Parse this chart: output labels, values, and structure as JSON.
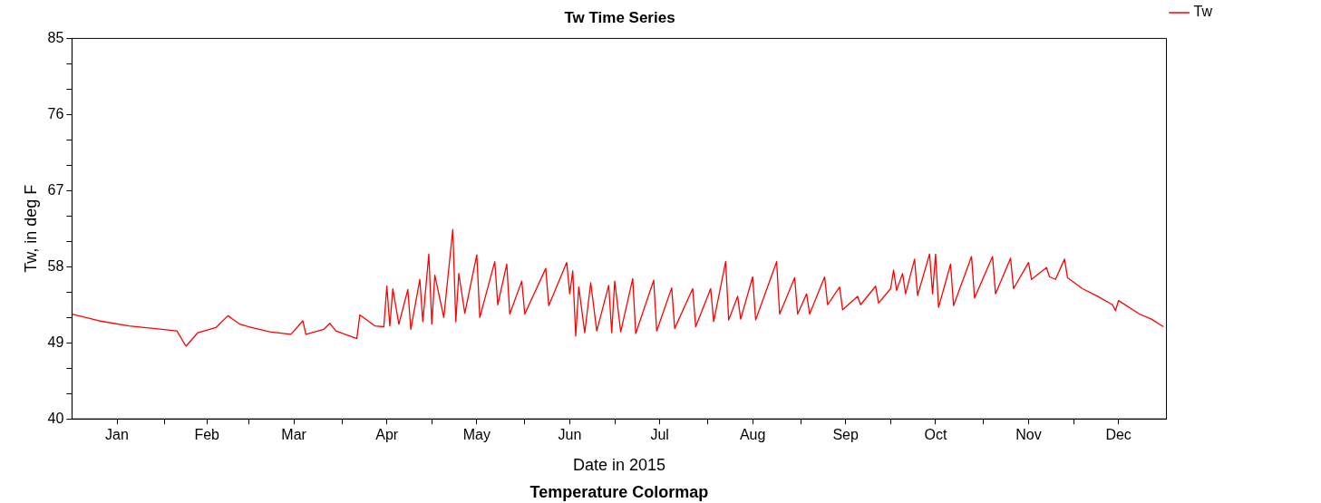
{
  "chart_data": {
    "type": "line",
    "title": "Tw Time Series",
    "xlabel": "Date in 2015",
    "ylabel": "Tw, in deg F",
    "annotations": [
      "Temperature Colormap"
    ],
    "x": [
      "2015-01-01",
      "2015-01-10",
      "2015-01-20",
      "2015-01-31",
      "2015-02-05",
      "2015-02-08",
      "2015-02-12",
      "2015-02-18",
      "2015-02-22",
      "2015-02-26",
      "2015-03-01",
      "2015-03-08",
      "2015-03-15",
      "2015-03-19",
      "2015-03-20",
      "2015-03-26",
      "2015-03-28",
      "2015-03-30",
      "2015-04-06",
      "2015-04-07",
      "2015-04-12",
      "2015-04-15",
      "2015-04-16",
      "2015-04-17",
      "2015-04-18",
      "2015-04-20",
      "2015-04-23",
      "2015-04-24",
      "2015-04-27",
      "2015-04-28",
      "2015-04-30",
      "2015-05-01",
      "2015-05-02",
      "2015-05-05",
      "2015-05-08",
      "2015-05-09",
      "2015-05-10",
      "2015-05-12",
      "2015-05-16",
      "2015-05-17",
      "2015-05-22",
      "2015-05-23",
      "2015-05-26",
      "2015-05-27",
      "2015-05-31",
      "2015-06-01",
      "2015-06-08",
      "2015-06-09",
      "2015-06-15",
      "2015-06-16",
      "2015-06-17",
      "2015-06-18",
      "2015-06-19",
      "2015-06-21",
      "2015-06-23",
      "2015-06-25",
      "2015-06-29",
      "2015-06-30",
      "2015-07-01",
      "2015-07-03",
      "2015-07-07",
      "2015-07-08",
      "2015-07-14",
      "2015-07-15",
      "2015-07-20",
      "2015-07-21",
      "2015-07-27",
      "2015-07-28",
      "2015-08-02",
      "2015-08-03",
      "2015-08-07",
      "2015-08-08",
      "2015-08-11",
      "2015-08-12",
      "2015-08-16",
      "2015-08-17",
      "2015-08-24",
      "2015-08-25",
      "2015-08-30",
      "2015-08-31",
      "2015-09-03",
      "2015-09-04",
      "2015-09-09",
      "2015-09-10",
      "2015-09-14",
      "2015-09-15",
      "2015-09-20",
      "2015-09-21",
      "2015-09-26",
      "2015-09-27",
      "2015-10-01",
      "2015-10-02",
      "2015-10-03",
      "2015-10-05",
      "2015-10-06",
      "2015-10-09",
      "2015-10-10",
      "2015-10-14",
      "2015-10-15",
      "2015-10-16",
      "2015-10-17",
      "2015-10-21",
      "2015-10-22",
      "2015-10-28",
      "2015-10-29",
      "2015-11-04",
      "2015-11-05",
      "2015-11-10",
      "2015-11-11",
      "2015-11-16",
      "2015-11-17",
      "2015-11-22",
      "2015-11-23",
      "2015-11-25",
      "2015-11-28",
      "2015-11-29",
      "2015-12-04",
      "2015-12-09",
      "2015-12-14",
      "2015-12-15",
      "2015-12-16",
      "2015-12-23",
      "2015-12-27",
      "2015-12-31"
    ],
    "series": [
      {
        "name": "Tw",
        "color": "#ff0000",
        "values": [
          52.4,
          51.6,
          51.0,
          50.6,
          50.4,
          48.6,
          50.2,
          50.8,
          52.2,
          51.2,
          50.9,
          50.3,
          50.0,
          51.6,
          50.0,
          50.6,
          51.3,
          50.4,
          49.5,
          52.3,
          51.0,
          50.9,
          55.7,
          51.0,
          55.4,
          51.2,
          55.3,
          50.6,
          56.5,
          51.5,
          59.5,
          51.2,
          57.0,
          52.0,
          62.4,
          51.5,
          57.2,
          52.5,
          59.4,
          52.0,
          58.6,
          53.5,
          58.3,
          52.4,
          56.3,
          52.4,
          57.8,
          53.4,
          58.5,
          54.8,
          57.5,
          49.8,
          55.6,
          50.2,
          56.1,
          50.4,
          55.8,
          50.2,
          56.3,
          50.3,
          56.6,
          50.1,
          56.4,
          50.4,
          55.5,
          50.7,
          55.4,
          50.9,
          55.4,
          51.5,
          58.6,
          51.7,
          54.5,
          51.8,
          56.8,
          51.7,
          58.6,
          52.4,
          56.7,
          52.4,
          54.8,
          52.4,
          56.8,
          53.5,
          55.6,
          52.9,
          54.5,
          53.5,
          55.7,
          53.7,
          55.4,
          57.6,
          55.2,
          57.2,
          54.8,
          58.9,
          54.6,
          59.5,
          54.8,
          59.5,
          53.2,
          58.3,
          53.4,
          59.2,
          54.3,
          59.2,
          54.8,
          59.0,
          55.4,
          58.5,
          56.5,
          57.9,
          56.8,
          56.5,
          58.9,
          56.7,
          55.4,
          54.5,
          53.5,
          52.8,
          54.0,
          52.4,
          51.8,
          50.9
        ]
      }
    ],
    "xlim": [
      "2015-01-01",
      "2016-01-01"
    ],
    "xticks": [
      {
        "value": "2015-01-16",
        "label": "Jan"
      },
      {
        "value": "2015-02-01",
        "label": null
      },
      {
        "value": "2015-02-15",
        "label": "Feb"
      },
      {
        "value": "2015-03-01",
        "label": null
      },
      {
        "value": "2015-03-16",
        "label": "Mar"
      },
      {
        "value": "2015-04-01",
        "label": null
      },
      {
        "value": "2015-04-16",
        "label": "Apr"
      },
      {
        "value": "2015-05-01",
        "label": null
      },
      {
        "value": "2015-05-16",
        "label": "May"
      },
      {
        "value": "2015-06-01",
        "label": null
      },
      {
        "value": "2015-06-16",
        "label": "Jun"
      },
      {
        "value": "2015-07-01",
        "label": null
      },
      {
        "value": "2015-07-16",
        "label": "Jul"
      },
      {
        "value": "2015-08-01",
        "label": null
      },
      {
        "value": "2015-08-16",
        "label": "Aug"
      },
      {
        "value": "2015-09-01",
        "label": null
      },
      {
        "value": "2015-09-16",
        "label": "Sep"
      },
      {
        "value": "2015-10-01",
        "label": null
      },
      {
        "value": "2015-10-16",
        "label": "Oct"
      },
      {
        "value": "2015-11-01",
        "label": null
      },
      {
        "value": "2015-11-16",
        "label": "Nov"
      },
      {
        "value": "2015-12-01",
        "label": null
      },
      {
        "value": "2015-12-16",
        "label": "Dec"
      }
    ],
    "ylim": [
      40,
      85
    ],
    "yticks": [
      40,
      {
        "value": 43,
        "label": null
      },
      {
        "value": 46,
        "label": null
      },
      49,
      {
        "value": 52,
        "label": null
      },
      {
        "value": 55,
        "label": null
      },
      58,
      {
        "value": 61,
        "label": null
      },
      {
        "value": 64,
        "label": null
      },
      67,
      {
        "value": 70,
        "label": null
      },
      {
        "value": 73,
        "label": null
      },
      76,
      {
        "value": 79,
        "label": null
      },
      {
        "value": 82,
        "label": null
      },
      85
    ],
    "grid": false,
    "legend": "top right",
    "marker": "none",
    "line_style": "solid"
  }
}
